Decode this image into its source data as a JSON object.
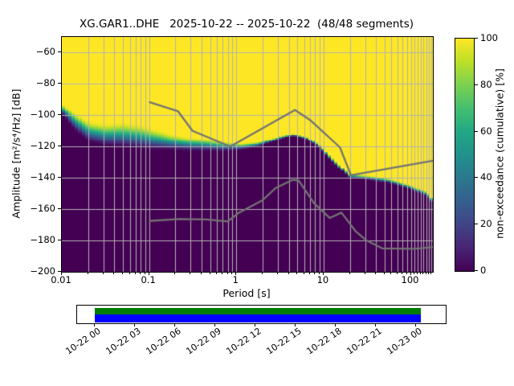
{
  "title": "XG.GAR1..DHE   2025-10-22 -- 2025-10-22  (48/48 segments)",
  "station": {
    "network": "XG",
    "station": "GAR1",
    "channel": "DHE",
    "date_start": "2025-10-22",
    "date_end": "2025-10-22",
    "segments": "48/48 segments"
  },
  "chart_data": {
    "type": "heatmap",
    "subtype": "ppsd-cumulative",
    "title": "XG.GAR1..DHE   2025-10-22 -- 2025-10-22  (48/48 segments)",
    "xlabel": "Period [s]",
    "ylabel": "Amplitude [m²/s⁴/Hz] [dB]",
    "x_scale": "log",
    "xlim": [
      0.01,
      179
    ],
    "ylim": [
      -200,
      -50
    ],
    "grid": true,
    "x_major_ticks": [
      {
        "p": 0.01,
        "label": "0.01"
      },
      {
        "p": 0.1,
        "label": "0.1"
      },
      {
        "p": 1,
        "label": "1"
      },
      {
        "p": 10,
        "label": "10"
      },
      {
        "p": 100,
        "label": "100"
      }
    ],
    "y_major_ticks": [
      {
        "db": -60,
        "label": "−60"
      },
      {
        "db": -80,
        "label": "−80"
      },
      {
        "db": -100,
        "label": "−100"
      },
      {
        "db": -120,
        "label": "−120"
      },
      {
        "db": -140,
        "label": "−140"
      },
      {
        "db": -160,
        "label": "−160"
      },
      {
        "db": -180,
        "label": "−180"
      },
      {
        "db": -200,
        "label": "−200"
      }
    ],
    "cumulative_band_note": "non-exceedance heatmap: [log10(period s), dB at 0% (distribution min), dB at 100% (distribution max)]; dark viridis below min, yellow above max",
    "cumulative_band": [
      [
        -2.0,
        -99.5,
        -92.0
      ],
      [
        -1.85,
        -110.0,
        -98.0
      ],
      [
        -1.7,
        -117.5,
        -103.5
      ],
      [
        -1.5,
        -120.5,
        -105.0
      ],
      [
        -1.3,
        -121.5,
        -104.0
      ],
      [
        -1.1,
        -122.5,
        -105.5
      ],
      [
        -0.95,
        -123.0,
        -108.0
      ],
      [
        -0.75,
        -123.0,
        -111.5
      ],
      [
        -0.55,
        -123.5,
        -113.5
      ],
      [
        -0.35,
        -123.5,
        -114.5
      ],
      [
        -0.15,
        -123.5,
        -116.5
      ],
      [
        0.05,
        -122.5,
        -118.0
      ],
      [
        0.25,
        -120.5,
        -117.0
      ],
      [
        0.42,
        -117.0,
        -114.5
      ],
      [
        0.55,
        -114.5,
        -112.5
      ],
      [
        0.67,
        -113.2,
        -111.6
      ],
      [
        0.8,
        -115.5,
        -113.5
      ],
      [
        0.95,
        -121.0,
        -118.5
      ],
      [
        1.1,
        -130.0,
        -127.0
      ],
      [
        1.3,
        -140.5,
        -137.5
      ],
      [
        1.5,
        -141.5,
        -138.5
      ],
      [
        1.75,
        -143.5,
        -140.5
      ],
      [
        2.0,
        -147.5,
        -144.5
      ],
      [
        2.18,
        -152.0,
        -148.5
      ],
      [
        2.2529,
        -157.5,
        -153.0
      ]
    ],
    "noise_models_note": "gray reference curves (Peterson high/low noise models), [period s, dB]",
    "noise_model_high": [
      [
        0.1,
        -91.5
      ],
      [
        0.215,
        -97.5
      ],
      [
        0.315,
        -110.0
      ],
      [
        0.85,
        -120.0
      ],
      [
        4.7,
        -96.6
      ],
      [
        7.0,
        -103.0
      ],
      [
        15.4,
        -120.5
      ],
      [
        20.6,
        -138.3
      ],
      [
        179,
        -129.0
      ]
    ],
    "noise_model_low": [
      [
        0.1,
        -167.5
      ],
      [
        0.22,
        -166.3
      ],
      [
        0.45,
        -166.5
      ],
      [
        0.8,
        -167.8
      ],
      [
        1.05,
        -162.5
      ],
      [
        2.0,
        -154.3
      ],
      [
        2.8,
        -146.6
      ],
      [
        4.4,
        -141.3
      ],
      [
        5.2,
        -141.8
      ],
      [
        7.8,
        -156.3
      ],
      [
        11.8,
        -165.6
      ],
      [
        16.0,
        -162.2
      ],
      [
        23.5,
        -174.3
      ],
      [
        31,
        -180.0
      ],
      [
        47,
        -185.0
      ],
      [
        110,
        -185.3
      ],
      [
        179,
        -184.3
      ]
    ],
    "grid_color": "#b2b2b2",
    "noise_model_color": "#737373"
  },
  "colorbar": {
    "label": "non-exceedance (cumulative) [%]",
    "range": [
      0,
      100
    ],
    "ticks": [
      {
        "v": 0,
        "label": "0"
      },
      {
        "v": 20,
        "label": "20"
      },
      {
        "v": 40,
        "label": "40"
      },
      {
        "v": 60,
        "label": "60"
      },
      {
        "v": 80,
        "label": "80"
      },
      {
        "v": 100,
        "label": "100"
      }
    ],
    "viridis_stops": [
      "#440154",
      "#482475",
      "#414487",
      "#355f8d",
      "#2a788e",
      "#21918c",
      "#22a884",
      "#44bf70",
      "#7ad151",
      "#bddf26",
      "#fde725"
    ]
  },
  "timeline": {
    "tick_labels": [
      "10-22 00",
      "10-22 03",
      "10-22 06",
      "10-22 09",
      "10-22 12",
      "10-22 15",
      "10-22 18",
      "10-22 21",
      "10-23 00"
    ],
    "used_color": "#007d00",
    "data_color": "#0000ff",
    "fill_start_frac": 0.048,
    "fill_end_frac": 0.932
  }
}
